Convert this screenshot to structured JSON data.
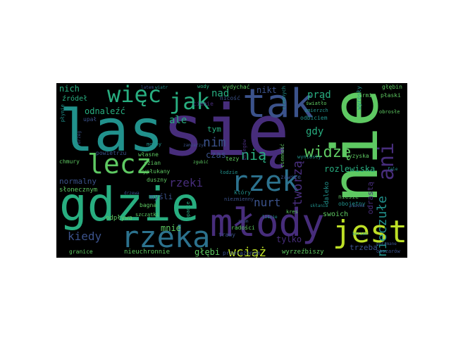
{
  "palette": {
    "purple": "#472d7b",
    "indigo": "#3b528b",
    "blue": "#2c728e",
    "teal": "#21918c",
    "green": "#28ae80",
    "lime": "#5ec962",
    "yellow": "#bddf26",
    "dark": "#440154"
  },
  "words": {
    "sie": "się",
    "nie": "nie",
    "las": "las",
    "gdzie": "gdzie",
    "mlody": "młody",
    "tak": "tak",
    "jest": "jest",
    "rzeka": "rzeka",
    "wiec": "więc",
    "lecz": "lecz",
    "jak": "jak",
    "ani": "ani",
    "rzek": "rzek",
    "wciaz": "wciąż",
    "kiedy": "kiedy",
    "nia": "nią",
    "widze": "widzę",
    "nieczule": "nieczułe",
    "rzeki": "rzeki",
    "nurt": "nurt",
    "tworza": "tworzą",
    "nim": "nim",
    "ale": "ale",
    "nad": "nad",
    "nich": "nich",
    "odnalezc": "odnaleźć",
    "nikt": "nikt",
    "prad": "prąd",
    "gdy": "gdy",
    "rozlewiska": "rozlewiska",
    "normalny": "normalny",
    "mysli": "myśli",
    "mnie": "mnie",
    "glebi": "głębi",
    "tylko": "tylko",
    "trzeba": "trzeba",
    "czas": "czas",
    "tym": "tym",
    "odrasta": "odrastą",
    "swoich": "swoich",
    "wyrzezbiszy": "wyrzeźbiszy",
    "niesie": "niesie",
    "obojetny": "obojętny",
    "zrodel": "źródeł",
    "slonecznym": "słonecznym",
    "odplywa": "odpływa",
    "nieuchronnie": "nieuchronnie",
    "granice": "granice",
    "przerazonym": "przerażonym",
    "wyzyska": "wyzyska",
    "daleko": "daleko",
    "bagna": "bagna",
    "duszny": "duszny",
    "radosci": "radości",
    "trawy": "trawy",
    "wyplukany": "wypłukany",
    "glebin": "głębin",
    "plaski": "płaski",
    "wyrosly": "wyrosły",
    "chmury": "chmury",
    "wlasne": "własne",
    "powietrzu": "powietrzu",
    "szian": "szian",
    "cienie": "cienie",
    "nicosc": "nicość",
    "wydychac": "wydychać",
    "wody": "wody",
    "karmi": "karmi",
    "zawsze": "zawsze",
    "ktory": "który",
    "obrosle": "obrosłe",
    "zmierzch": "zmierzch",
    "odbiciem": "odbiciem",
    "swiatlo": "światło",
    "upal": "upał",
    "wynioslu": "wyniosły",
    "tezy": "tezy",
    "niezmienny": "niezmienny",
    "lodzie": "łodzie",
    "obszarow": "obszarów",
    "brzegow": "brzegów",
    "mocny": "mocny",
    "plynie": "płynie",
    "kres": "kres",
    "ciemnych": "ciemnych",
    "polamane": "połamane",
    "zamierzyc": "zamierzyć",
    "szczatki": "szczątki",
    "sklania": "skłania",
    "opadle": "opadłe",
    "drzewa": "drzewa",
    "zgubic": "zgubić",
    "ciemnosc": "ciemność",
    "latem": "latem",
    "wiatr": "wiatr",
    "szum": "szum",
    "liscie": "liście",
    "piasek": "piasek",
    "korzen": "korzeń",
    "brzeg": "brzeg",
    "fale": "fale"
  }
}
